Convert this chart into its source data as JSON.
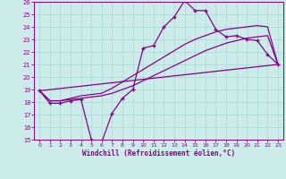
{
  "xlabel": "Windchill (Refroidissement éolien,°C)",
  "xlim": [
    -0.5,
    23.5
  ],
  "ylim": [
    15,
    26
  ],
  "xticks": [
    0,
    1,
    2,
    3,
    4,
    5,
    6,
    7,
    8,
    9,
    10,
    11,
    12,
    13,
    14,
    15,
    16,
    17,
    18,
    19,
    20,
    21,
    22,
    23
  ],
  "yticks": [
    15,
    16,
    17,
    18,
    19,
    20,
    21,
    22,
    23,
    24,
    25,
    26
  ],
  "bg_color": "#ccecea",
  "grid_color": "#aad8d6",
  "line_color": "#880088",
  "lines": [
    {
      "x": [
        0,
        1,
        2,
        3,
        4,
        5,
        6,
        7,
        8,
        9,
        10,
        11,
        12,
        13,
        14,
        15,
        16,
        17,
        18,
        19,
        20,
        21,
        22,
        23
      ],
      "y": [
        18.9,
        17.9,
        17.9,
        18.1,
        18.2,
        15.0,
        14.8,
        17.1,
        18.3,
        19.0,
        22.3,
        22.5,
        24.0,
        24.8,
        26.1,
        25.3,
        25.3,
        23.8,
        23.2,
        23.3,
        23.0,
        22.9,
        21.8,
        21.0
      ],
      "marker": "+",
      "markersize": 3.5,
      "lw": 0.9
    },
    {
      "x": [
        0,
        23
      ],
      "y": [
        18.9,
        21.0
      ],
      "marker": null,
      "markersize": 0,
      "lw": 0.9
    },
    {
      "x": [
        0,
        1,
        2,
        3,
        4,
        5,
        6,
        7,
        8,
        9,
        10,
        11,
        12,
        13,
        14,
        15,
        16,
        17,
        18,
        19,
        20,
        21,
        22,
        23
      ],
      "y": [
        18.9,
        18.1,
        18.1,
        18.2,
        18.3,
        18.4,
        18.5,
        18.7,
        19.0,
        19.3,
        19.7,
        20.1,
        20.5,
        20.9,
        21.3,
        21.7,
        22.1,
        22.4,
        22.7,
        22.9,
        23.1,
        23.2,
        23.3,
        21.0
      ],
      "marker": null,
      "markersize": 0,
      "lw": 0.9
    },
    {
      "x": [
        0,
        1,
        2,
        3,
        4,
        5,
        6,
        7,
        8,
        9,
        10,
        11,
        12,
        13,
        14,
        15,
        16,
        17,
        18,
        19,
        20,
        21,
        22,
        23
      ],
      "y": [
        18.9,
        18.1,
        18.1,
        18.3,
        18.5,
        18.6,
        18.7,
        19.1,
        19.6,
        20.1,
        20.6,
        21.1,
        21.6,
        22.1,
        22.6,
        23.0,
        23.3,
        23.6,
        23.8,
        23.9,
        24.0,
        24.1,
        24.0,
        21.0
      ],
      "marker": null,
      "markersize": 0,
      "lw": 0.9
    }
  ]
}
